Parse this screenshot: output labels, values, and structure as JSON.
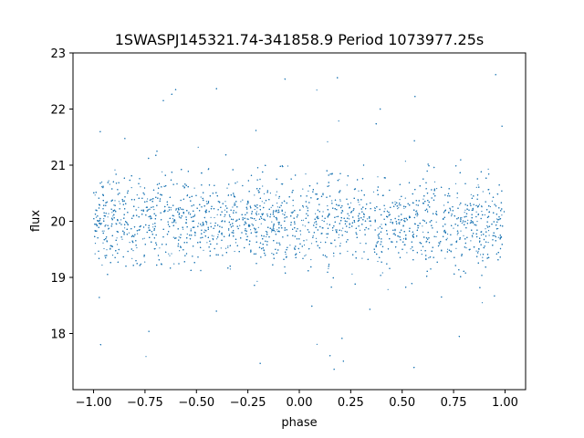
{
  "chart_data": {
    "type": "scatter",
    "title": "1SWASPJ145321.74-341858.9 Period 1073977.25s",
    "xlabel": "phase",
    "ylabel": "flux",
    "xlim": [
      -1.1,
      1.1
    ],
    "ylim": [
      17.0,
      23.0
    ],
    "xticks": [
      -1.0,
      -0.75,
      -0.5,
      -0.25,
      0.0,
      0.25,
      0.5,
      0.75,
      1.0
    ],
    "xtick_labels": [
      "−1.00",
      "−0.75",
      "−0.50",
      "−0.25",
      "0.00",
      "0.25",
      "0.50",
      "0.75",
      "1.00"
    ],
    "yticks": [
      18,
      19,
      20,
      21,
      22,
      23
    ],
    "ytick_labels": [
      "18",
      "19",
      "20",
      "21",
      "22",
      "23"
    ],
    "grid": false,
    "marker_color": "#1f77b4",
    "series": [
      {
        "x_range": [
          -1.0,
          1.0
        ],
        "center_flux": 20.0,
        "core_spread": [
          19.3,
          20.8
        ],
        "outlier_range": [
          17.3,
          22.7
        ]
      }
    ]
  }
}
